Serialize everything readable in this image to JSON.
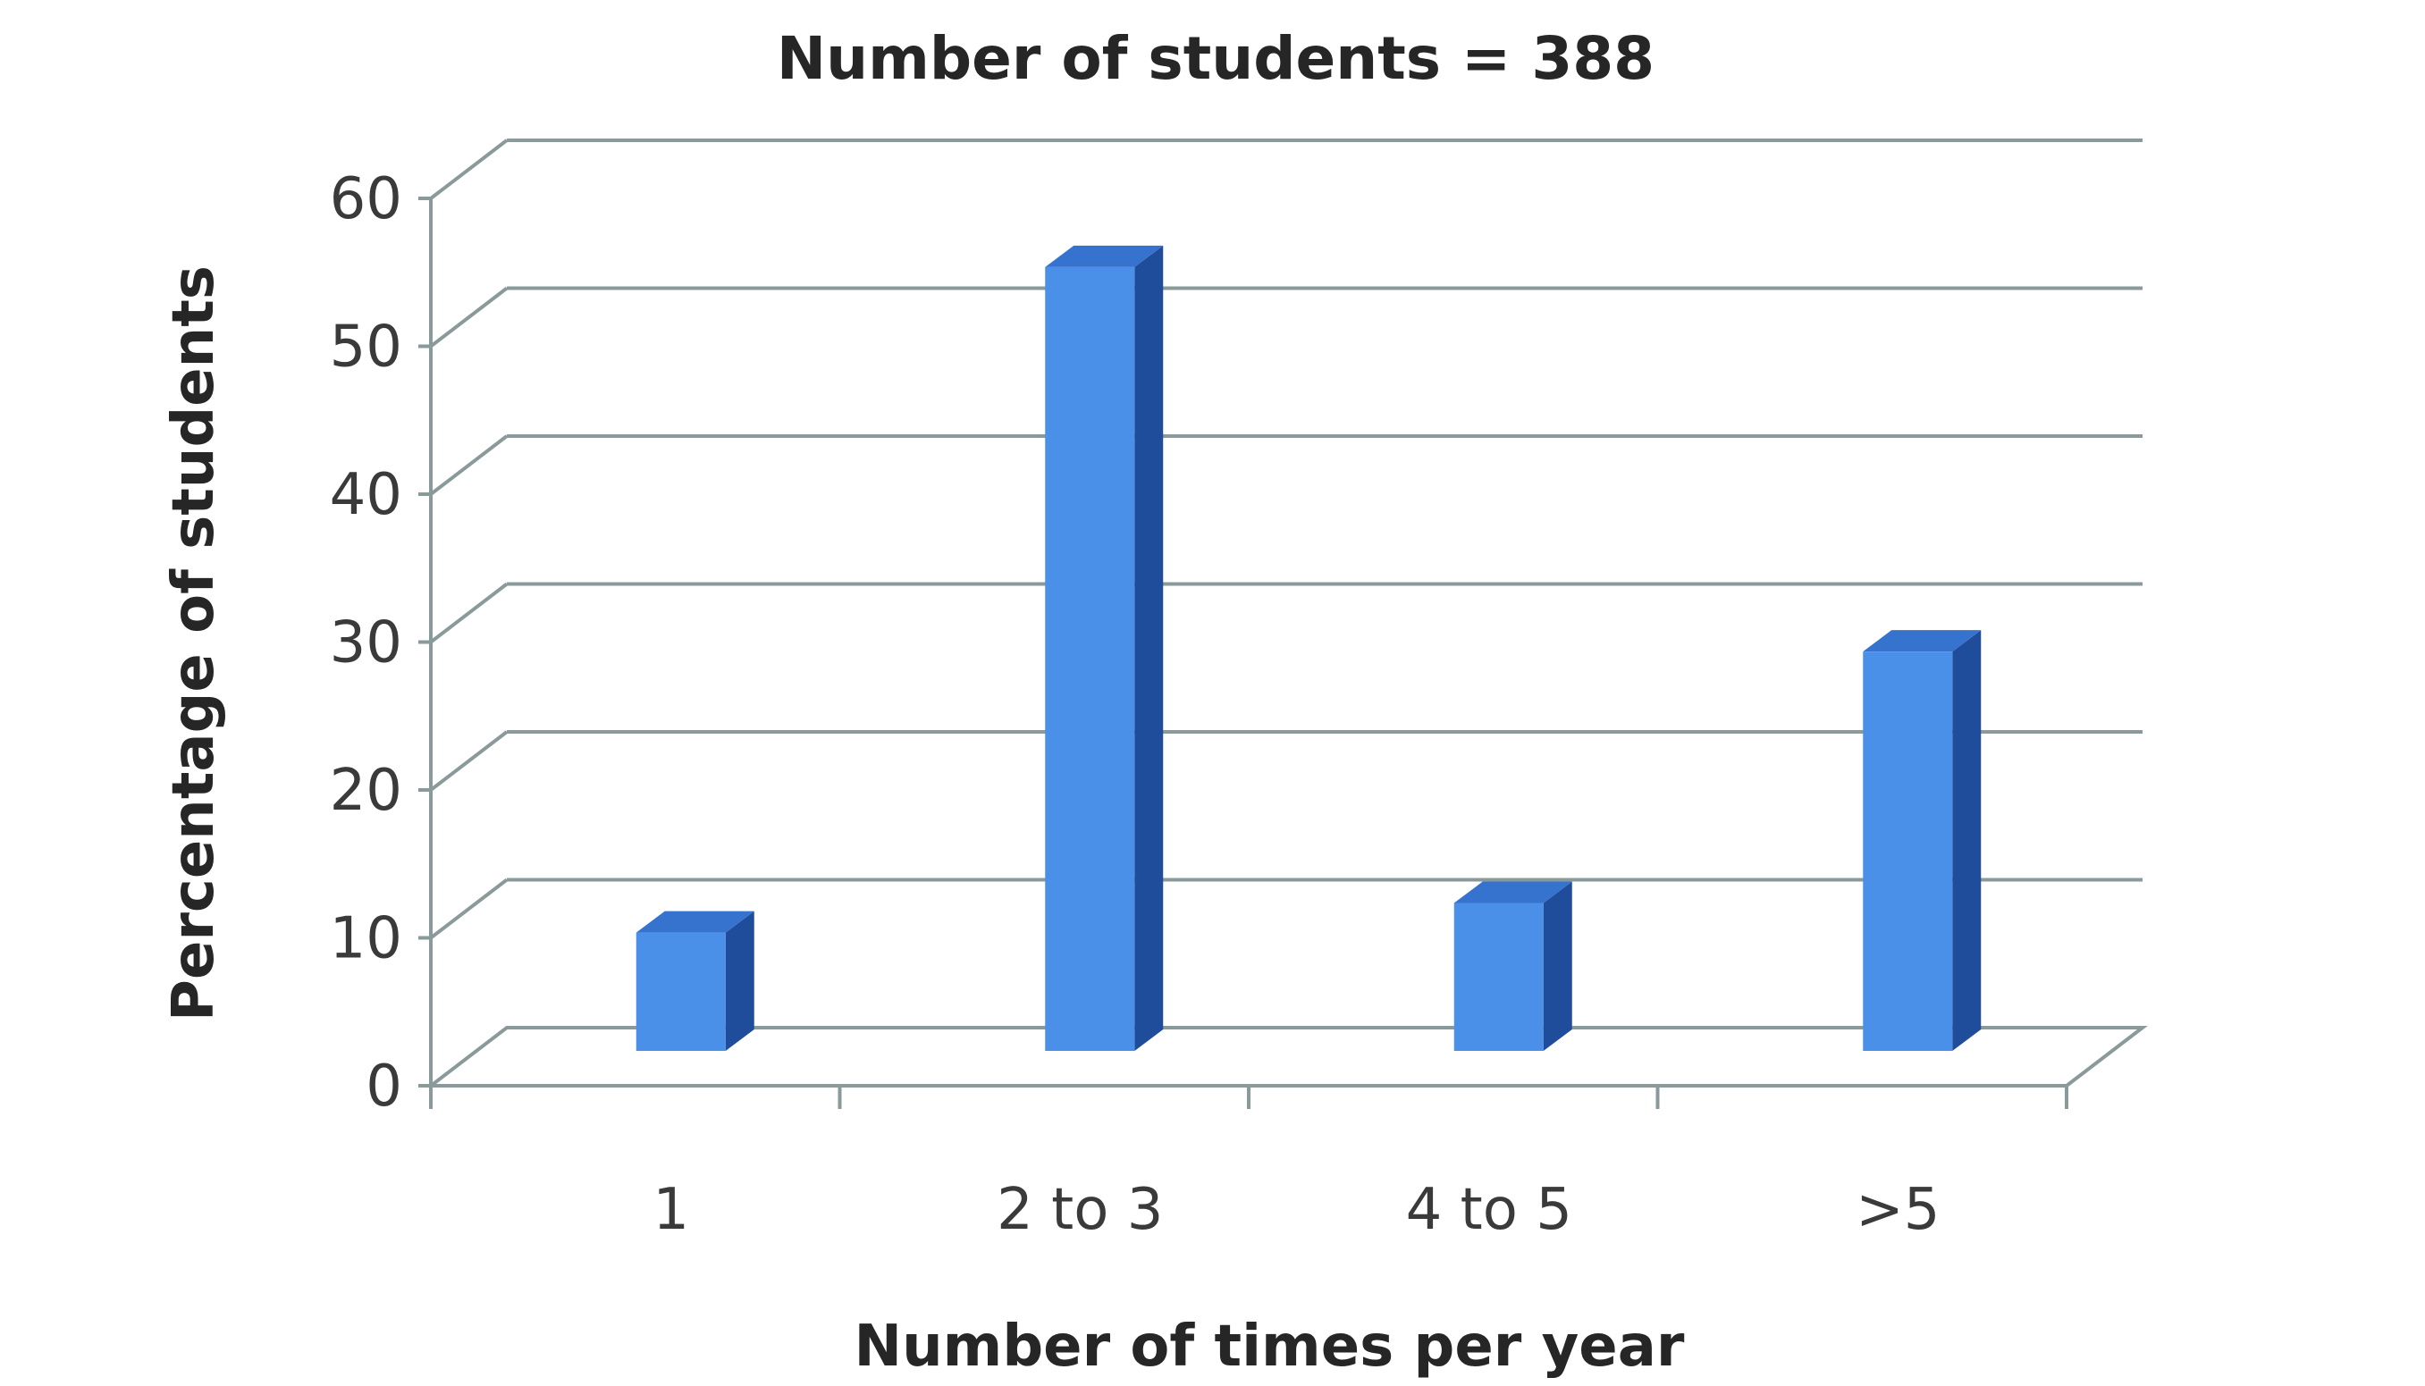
{
  "chart_data": {
    "type": "bar",
    "title": "Number of students = 388",
    "xlabel": "Number of times per year",
    "ylabel": "Percentage of students",
    "categories": [
      "1",
      "2 to 3",
      "4 to 5",
      ">5"
    ],
    "values": [
      8,
      53,
      10,
      27
    ],
    "ylim": [
      0,
      60
    ],
    "yticks": [
      "0",
      "10",
      "20",
      "30",
      "40",
      "50",
      "60"
    ],
    "grid": true,
    "legend": "none",
    "style": "3d-column"
  },
  "colors": {
    "bar_front": "#4a90e8",
    "bar_side": "#1f4d9c",
    "bar_top": "#3573cf",
    "grid": "#8a9a9a",
    "text": "#262626"
  }
}
